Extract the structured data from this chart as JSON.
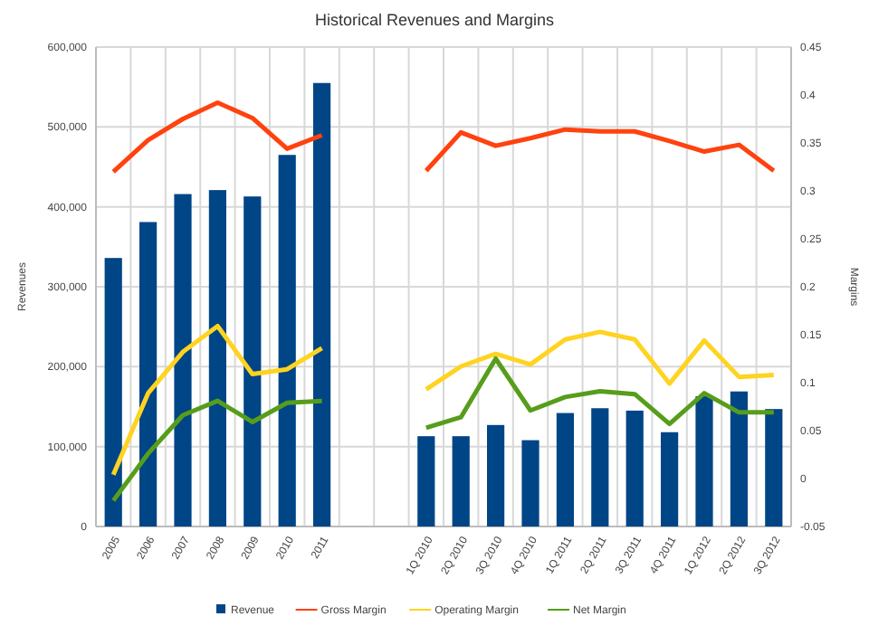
{
  "chart_data": {
    "type": "bar",
    "title": "Historical Revenues and Margins",
    "ylabel": "Revenues",
    "y2label": "Margins",
    "categories": [
      "2005",
      "2006",
      "2007",
      "2008",
      "2009",
      "2010",
      "2011",
      null,
      null,
      "1Q 2010",
      "2Q 2010",
      "3Q 2010",
      "4Q 2010",
      "1Q 2011",
      "2Q 2011",
      "3Q 2011",
      "4Q 2011",
      "1Q 2012",
      "2Q 2012",
      "3Q 2012"
    ],
    "series": [
      {
        "name": "Revenue",
        "color": "#004586",
        "values": [
          336000,
          381000,
          416000,
          421000,
          413000,
          465000,
          555000,
          null,
          null,
          113000,
          113000,
          127000,
          108000,
          142000,
          148000,
          145000,
          118000,
          163000,
          169000,
          147000
        ]
      },
      {
        "name": "Gross Margin",
        "type": "line",
        "axis": "y2",
        "color": "#ff420e",
        "values": [
          0.32,
          0.353,
          0.375,
          0.392,
          0.376,
          0.344,
          0.358,
          null,
          null,
          0.321,
          0.361,
          0.347,
          0.355,
          0.364,
          0.362,
          0.362,
          0.352,
          0.341,
          0.348,
          0.321
        ]
      },
      {
        "name": "Operating Margin",
        "type": "line",
        "axis": "y2",
        "color": "#ffd320",
        "values": [
          0.004,
          0.089,
          0.132,
          0.159,
          0.109,
          0.114,
          0.136,
          null,
          null,
          0.093,
          0.117,
          0.13,
          0.119,
          0.145,
          0.153,
          0.145,
          0.099,
          0.144,
          0.106,
          0.108
        ]
      },
      {
        "name": "Net Margin",
        "type": "line",
        "axis": "y2",
        "color": "#579d1c",
        "values": [
          -0.023,
          0.026,
          0.066,
          0.081,
          0.059,
          0.079,
          0.081,
          null,
          null,
          0.053,
          0.064,
          0.125,
          0.071,
          0.085,
          0.091,
          0.088,
          0.057,
          0.089,
          0.069,
          0.069
        ]
      }
    ],
    "ylim": [
      0,
      600000
    ],
    "yticks": [
      {
        "value": 0,
        "label": "0"
      },
      {
        "value": 100000,
        "label": "100,000"
      },
      {
        "value": 200000,
        "label": "200,000"
      },
      {
        "value": 300000,
        "label": "300,000"
      },
      {
        "value": 400000,
        "label": "400,000"
      },
      {
        "value": 500000,
        "label": "500,000"
      },
      {
        "value": 600000,
        "label": "600,000"
      }
    ],
    "y2lim": [
      -0.05,
      0.45
    ],
    "y2ticks": [
      -0.05,
      0,
      0.05,
      0.1,
      0.15,
      0.2,
      0.25,
      0.3,
      0.35,
      0.4,
      0.45
    ],
    "grid": true,
    "legend": "bottom",
    "marker": "none",
    "line_style": "solid"
  }
}
